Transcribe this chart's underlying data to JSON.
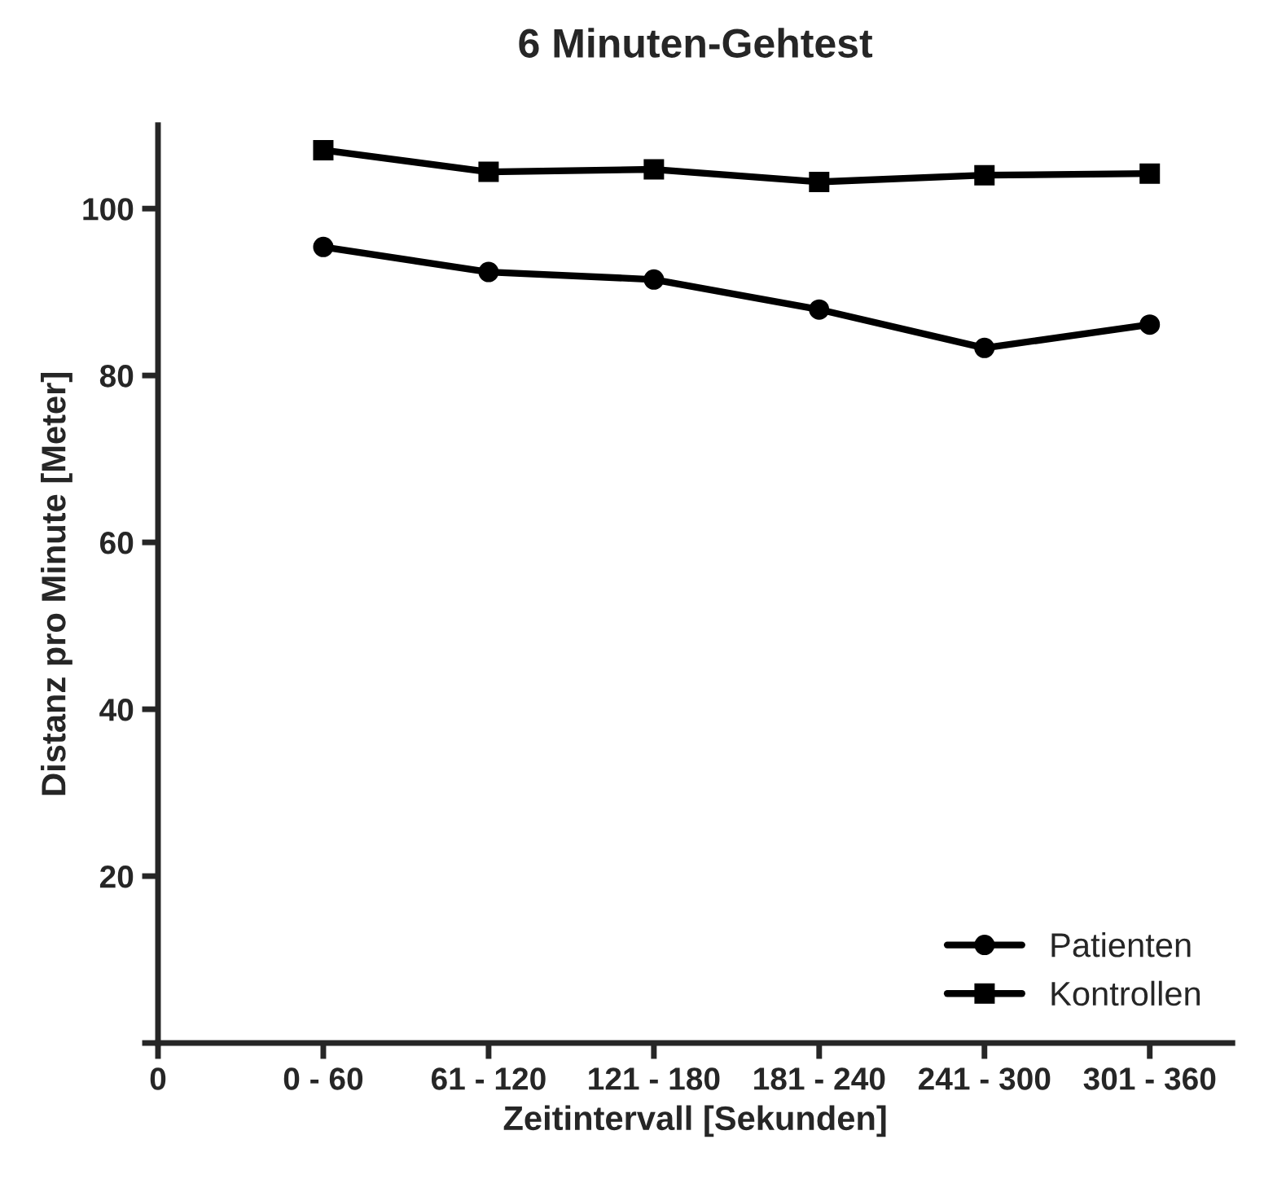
{
  "chart_data": {
    "type": "line",
    "title": "6 Minuten-Gehtest",
    "xlabel": "Zeitintervall [Sekunden]",
    "ylabel": "Distanz pro Minute [Meter]",
    "categories": [
      "0",
      "0 - 60",
      "61 - 120",
      "121 - 180",
      "181 - 240",
      "241 - 300",
      "301 - 360"
    ],
    "series": [
      {
        "name": "Patienten",
        "color": "#000000",
        "marker": "circle",
        "values": [
          null,
          95.4,
          92.4,
          91.5,
          87.9,
          83.3,
          86.1
        ]
      },
      {
        "name": "Kontrollen",
        "color": "#000000",
        "marker": "square",
        "values": [
          null,
          107.0,
          104.4,
          104.7,
          103.2,
          104.0,
          104.2
        ]
      }
    ],
    "ylim": [
      0,
      110
    ],
    "yticks": [
      {
        "value": 0,
        "label": null
      },
      20,
      40,
      60,
      80,
      100
    ],
    "grid": false,
    "legend": "bottom right",
    "line_style": "solid"
  }
}
